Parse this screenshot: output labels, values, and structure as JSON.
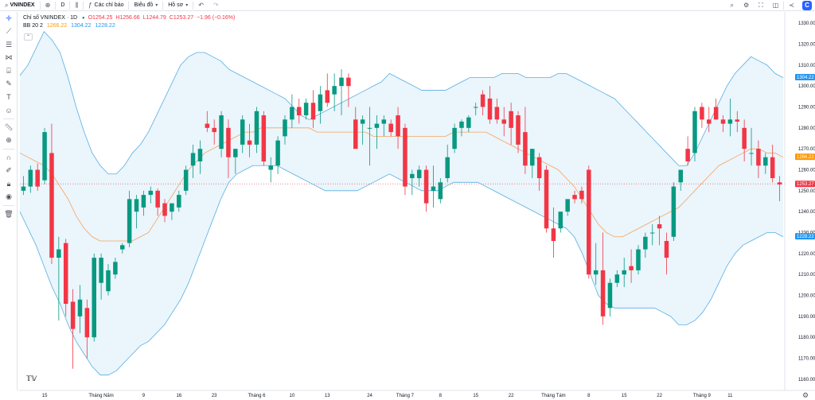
{
  "topbar": {
    "symbol": "VNINDEX",
    "interval": "D",
    "indicators_label": "Các chỉ báo",
    "chart_type_label": "Biểu đồ",
    "profile_label": "Hồ sơ",
    "logo_letter": "C"
  },
  "legend": {
    "title": "Chỉ số VNINDEX · 1D",
    "open": "O1254.25",
    "high": "H1256.66",
    "low": "L1244.79",
    "close": "C1253.27",
    "change": "−1.96 (−0.16%)",
    "bb_label": "BB 20 2",
    "bb_basis": "1266.22",
    "bb_upper": "1304.22",
    "bb_lower": "1228.22"
  },
  "price_badges": {
    "upper": {
      "label": "1304.22",
      "value": 1304.22,
      "color": "#2196f3"
    },
    "basis": {
      "label": "1266.22",
      "value": 1266.22,
      "color": "#ff9800"
    },
    "last": {
      "label": "1253.27",
      "value": 1253.27,
      "color": "#f23645"
    },
    "lower": {
      "label": "1228.22",
      "value": 1228.22,
      "color": "#2196f3"
    }
  },
  "colors": {
    "up": "#089981",
    "down": "#f23645",
    "basis": "#f7a35c",
    "band": "#5aaee0",
    "band_fill": "#e3f1fb"
  },
  "chart_data": {
    "type": "candlestick",
    "y_axis": {
      "ticks": [
        "1330.00",
        "1320.00",
        "1310.00",
        "1300.00",
        "1290.00",
        "1280.00",
        "1270.00",
        "1260.00",
        "1250.00",
        "1240.00",
        "1230.00",
        "1220.00",
        "1210.00",
        "1200.00",
        "1190.00",
        "1180.00",
        "1170.00",
        "1160.00"
      ],
      "ylim": [
        1155,
        1335
      ]
    },
    "x_axis": {
      "labels": [
        "15",
        "Tháng Năm",
        "9",
        "16",
        "23",
        "Tháng 6",
        "10",
        "13",
        "24",
        "Tháng 7",
        "8",
        "15",
        "22",
        "Tháng Tám",
        "8",
        "15",
        "22",
        "Tháng 9",
        "11"
      ],
      "label_index": [
        3,
        11,
        17,
        22,
        27,
        33,
        38,
        43,
        49,
        54,
        59,
        64,
        69,
        75,
        80,
        85,
        90,
        96,
        100
      ]
    },
    "candles": [
      [
        1250,
        1257,
        1248,
        1252
      ],
      [
        1252,
        1262,
        1249,
        1260
      ],
      [
        1260,
        1263,
        1250,
        1252
      ],
      [
        1255,
        1280,
        1253,
        1278
      ],
      [
        1268,
        1282,
        1215,
        1218
      ],
      [
        1218,
        1228,
        1188,
        1222
      ],
      [
        1225,
        1227,
        1190,
        1196
      ],
      [
        1197,
        1203,
        1165,
        1184
      ],
      [
        1190,
        1205,
        1182,
        1198
      ],
      [
        1194,
        1198,
        1170,
        1180
      ],
      [
        1180,
        1220,
        1178,
        1218
      ],
      [
        1206,
        1220,
        1198,
        1218
      ],
      [
        1202,
        1215,
        1200,
        1212
      ],
      [
        1210,
        1218,
        1208,
        1216
      ],
      [
        1222,
        1225,
        1220,
        1224
      ],
      [
        1225,
        1250,
        1223,
        1246
      ],
      [
        1240,
        1248,
        1232,
        1246
      ],
      [
        1242,
        1250,
        1238,
        1248
      ],
      [
        1248,
        1252,
        1244,
        1250
      ],
      [
        1250,
        1251,
        1238,
        1242
      ],
      [
        1244,
        1246,
        1235,
        1238
      ],
      [
        1240,
        1244,
        1236,
        1244
      ],
      [
        1242,
        1250,
        1240,
        1248
      ],
      [
        1250,
        1262,
        1248,
        1260
      ],
      [
        1262,
        1272,
        1256,
        1268
      ],
      [
        1264,
        1274,
        1258,
        1270
      ],
      [
        1282,
        1288,
        1278,
        1280
      ],
      [
        1280,
        1284,
        1272,
        1278
      ],
      [
        1270,
        1288,
        1266,
        1286
      ],
      [
        1280,
        1284,
        1256,
        1266
      ],
      [
        1266,
        1270,
        1258,
        1270
      ],
      [
        1272,
        1286,
        1268,
        1284
      ],
      [
        1274,
        1282,
        1266,
        1272
      ],
      [
        1272,
        1290,
        1268,
        1288
      ],
      [
        1286,
        1288,
        1262,
        1264
      ],
      [
        1260,
        1266,
        1254,
        1262
      ],
      [
        1262,
        1276,
        1258,
        1274
      ],
      [
        1276,
        1286,
        1272,
        1284
      ],
      [
        1284,
        1296,
        1280,
        1290
      ],
      [
        1290,
        1294,
        1282,
        1286
      ],
      [
        1286,
        1294,
        1284,
        1292
      ],
      [
        1292,
        1298,
        1280,
        1284
      ],
      [
        1288,
        1300,
        1282,
        1296
      ],
      [
        1298,
        1306,
        1290,
        1292
      ],
      [
        1296,
        1306,
        1288,
        1300
      ],
      [
        1300,
        1308,
        1286,
        1304
      ],
      [
        1304,
        1306,
        1290,
        1300
      ],
      [
        1284,
        1290,
        1270,
        1270
      ],
      [
        1282,
        1286,
        1272,
        1284
      ],
      [
        1280,
        1290,
        1262,
        1280
      ],
      [
        1280,
        1286,
        1270,
        1282
      ],
      [
        1282,
        1286,
        1276,
        1284
      ],
      [
        1282,
        1284,
        1276,
        1278
      ],
      [
        1286,
        1290,
        1270,
        1276
      ],
      [
        1280,
        1282,
        1248,
        1252
      ],
      [
        1256,
        1260,
        1248,
        1258
      ],
      [
        1256,
        1262,
        1252,
        1260
      ],
      [
        1260,
        1262,
        1240,
        1244
      ],
      [
        1250,
        1262,
        1242,
        1252
      ],
      [
        1246,
        1256,
        1244,
        1254
      ],
      [
        1256,
        1272,
        1254,
        1266
      ],
      [
        1270,
        1282,
        1268,
        1280
      ],
      [
        1280,
        1284,
        1276,
        1283
      ],
      [
        1280,
        1286,
        1278,
        1285
      ],
      [
        1290,
        1292,
        1286,
        1290
      ],
      [
        1296,
        1298,
        1286,
        1290
      ],
      [
        1294,
        1300,
        1282,
        1284
      ],
      [
        1290,
        1294,
        1282,
        1284
      ],
      [
        1284,
        1290,
        1276,
        1282
      ],
      [
        1288,
        1292,
        1272,
        1280
      ],
      [
        1286,
        1288,
        1268,
        1272
      ],
      [
        1278,
        1290,
        1258,
        1262
      ],
      [
        1262,
        1270,
        1256,
        1270
      ],
      [
        1266,
        1268,
        1250,
        1256
      ],
      [
        1260,
        1262,
        1230,
        1232
      ],
      [
        1232,
        1242,
        1218,
        1226
      ],
      [
        1232,
        1240,
        1230,
        1240
      ],
      [
        1240,
        1246,
        1238,
        1246
      ],
      [
        1248,
        1250,
        1244,
        1246
      ],
      [
        1250,
        1252,
        1244,
        1246
      ],
      [
        1260,
        1262,
        1208,
        1210
      ],
      [
        1210,
        1225,
        1205,
        1212
      ],
      [
        1212,
        1230,
        1186,
        1190
      ],
      [
        1194,
        1208,
        1190,
        1206
      ],
      [
        1206,
        1212,
        1204,
        1210
      ],
      [
        1210,
        1218,
        1204,
        1212
      ],
      [
        1214,
        1222,
        1206,
        1212
      ],
      [
        1212,
        1224,
        1210,
        1222
      ],
      [
        1222,
        1230,
        1218,
        1228
      ],
      [
        1230,
        1234,
        1224,
        1230
      ],
      [
        1234,
        1238,
        1224,
        1232
      ],
      [
        1226,
        1230,
        1210,
        1218
      ],
      [
        1228,
        1254,
        1226,
        1252
      ],
      [
        1254,
        1260,
        1250,
        1260
      ],
      [
        1270,
        1276,
        1262,
        1264
      ],
      [
        1268,
        1290,
        1264,
        1288
      ],
      [
        1290,
        1292,
        1280,
        1284
      ],
      [
        1284,
        1290,
        1278,
        1282
      ],
      [
        1290,
        1294,
        1284,
        1284
      ],
      [
        1284,
        1286,
        1278,
        1282
      ],
      [
        1282,
        1294,
        1276,
        1284
      ],
      [
        1284,
        1288,
        1278,
        1283
      ],
      [
        1280,
        1284,
        1264,
        1270
      ],
      [
        1268,
        1280,
        1262,
        1268
      ],
      [
        1270,
        1274,
        1256,
        1262
      ],
      [
        1262,
        1268,
        1258,
        1266
      ],
      [
        1266,
        1272,
        1254,
        1256
      ],
      [
        1254,
        1257,
        1245,
        1253
      ]
    ],
    "bb_upper": [
      1305,
      1310,
      1318,
      1326,
      1322,
      1316,
      1304,
      1290,
      1278,
      1268,
      1262,
      1258,
      1258,
      1262,
      1268,
      1272,
      1278,
      1286,
      1294,
      1302,
      1310,
      1314,
      1316,
      1316,
      1314,
      1312,
      1308,
      1306,
      1304,
      1302,
      1300,
      1298,
      1296,
      1294,
      1290,
      1286,
      1284,
      1286,
      1288,
      1290,
      1292,
      1294,
      1296,
      1298,
      1300,
      1302,
      1306,
      1304,
      1302,
      1300,
      1298,
      1298,
      1298,
      1298,
      1300,
      1302,
      1304,
      1304,
      1304,
      1304,
      1306,
      1306,
      1306,
      1304,
      1304,
      1304,
      1304,
      1306,
      1306,
      1304,
      1302,
      1300,
      1298,
      1296,
      1294,
      1290,
      1286,
      1282,
      1278,
      1274,
      1270,
      1266,
      1262,
      1262,
      1268,
      1276,
      1284,
      1292,
      1300,
      1306,
      1310,
      1314,
      1312,
      1310,
      1306,
      1304
    ],
    "bb_lower": [
      1240,
      1232,
      1224,
      1214,
      1204,
      1196,
      1186,
      1178,
      1172,
      1166,
      1162,
      1162,
      1164,
      1168,
      1172,
      1176,
      1178,
      1182,
      1186,
      1192,
      1198,
      1206,
      1216,
      1226,
      1236,
      1246,
      1254,
      1258,
      1260,
      1262,
      1262,
      1262,
      1262,
      1260,
      1258,
      1256,
      1254,
      1252,
      1250,
      1250,
      1250,
      1250,
      1250,
      1252,
      1254,
      1256,
      1258,
      1256,
      1254,
      1252,
      1250,
      1250,
      1250,
      1252,
      1254,
      1254,
      1254,
      1254,
      1252,
      1250,
      1248,
      1246,
      1244,
      1242,
      1240,
      1238,
      1236,
      1234,
      1232,
      1228,
      1220,
      1210,
      1200,
      1196,
      1194,
      1194,
      1194,
      1194,
      1194,
      1194,
      1192,
      1190,
      1186,
      1186,
      1188,
      1192,
      1198,
      1206,
      1214,
      1220,
      1224,
      1226,
      1228,
      1230,
      1230,
      1228
    ],
    "bb_basis": [
      1268,
      1266,
      1264,
      1262,
      1258,
      1252,
      1246,
      1238,
      1232,
      1228,
      1226,
      1226,
      1226,
      1226,
      1226,
      1228,
      1230,
      1236,
      1242,
      1248,
      1254,
      1260,
      1264,
      1268,
      1270,
      1272,
      1274,
      1276,
      1278,
      1278,
      1280,
      1280,
      1280,
      1280,
      1280,
      1280,
      1280,
      1278,
      1278,
      1278,
      1278,
      1278,
      1278,
      1278,
      1276,
      1276,
      1276,
      1276,
      1276,
      1276,
      1276,
      1276,
      1276,
      1276,
      1278,
      1278,
      1278,
      1278,
      1278,
      1276,
      1274,
      1272,
      1270,
      1268,
      1266,
      1264,
      1262,
      1260,
      1256,
      1252,
      1246,
      1240,
      1234,
      1230,
      1228,
      1228,
      1230,
      1232,
      1234,
      1236,
      1238,
      1240,
      1242,
      1246,
      1250,
      1254,
      1258,
      1262,
      1264,
      1266,
      1268,
      1270,
      1270,
      1268,
      1268,
      1266
    ]
  }
}
